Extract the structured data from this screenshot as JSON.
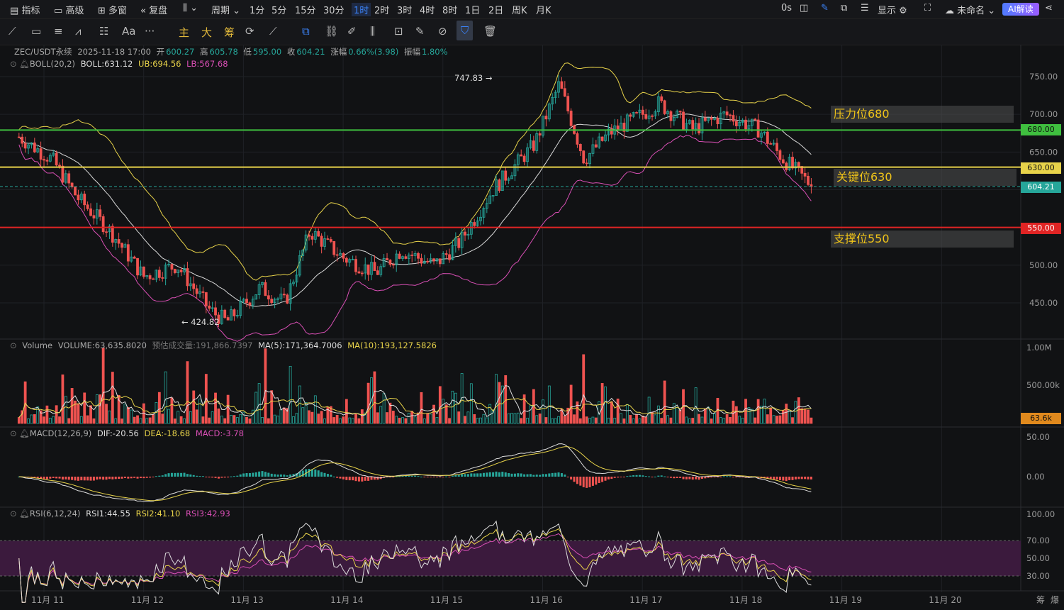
{
  "topbar": {
    "left": [
      {
        "icon": "indicator-icon",
        "label": "指标"
      },
      {
        "icon": "advanced-icon",
        "label": "高级"
      },
      {
        "icon": "multiwindow-icon",
        "label": "多窗"
      },
      {
        "icon": "replay-icon",
        "label": "复盘"
      }
    ],
    "chart_type_icon": "candlestick-icon",
    "period_label": "周期",
    "intervals": [
      "1分",
      "5分",
      "15分",
      "30分",
      "1时",
      "2时",
      "3时",
      "4时",
      "8时",
      "1日",
      "2日",
      "周K",
      "月K"
    ],
    "active_interval": "1时",
    "right": {
      "countdown": "0s",
      "display_label": "显示",
      "account_label": "未命名",
      "ai_label": "AI解读"
    }
  },
  "toolbar": {
    "main_label": "主",
    "big_label": "大",
    "chip_label": "筹",
    "aa_label": "Aa",
    "more": "···"
  },
  "legend": {
    "symbol": "ZEC/USDT永续",
    "datetime": "2025-11-18 17:00",
    "open_k": "开",
    "open": "600.27",
    "high_k": "高",
    "high": "605.78",
    "low_k": "低",
    "low": "595.00",
    "close_k": "收",
    "close": "604.21",
    "chg_k": "涨幅",
    "chg": "0.66%(3.98)",
    "amp_k": "振幅",
    "amp": "1.80%",
    "boll_name": "BOLL(20,2)",
    "boll": "BOLL:631.12",
    "ub": "UB:694.56",
    "lb": "LB:567.68",
    "vol_name": "Volume",
    "vol": "VOLUME:63,635.8020",
    "vol_est": "预估成交量:191,866.7397",
    "vma5": "MA(5):171,364.7006",
    "vma10": "MA(10):193,127.5826",
    "macd_name": "MACD(12,26,9)",
    "dif": "DIF:-20.56",
    "dea": "DEA:-18.68",
    "macd": "MACD:-3.78",
    "rsi_name": "RSI(6,12,24)",
    "rsi1": "RSI1:44.55",
    "rsi2": "RSI2:41.10",
    "rsi3": "RSI3:42.93"
  },
  "annotations": {
    "high_mark": "747.83",
    "low_mark": "424.82",
    "resistance_label": "压力位680",
    "key_label": "关键位630",
    "support_label": "支撑位550"
  },
  "price_tags": {
    "resistance": "680.00",
    "key": "630.00",
    "last": "604.21",
    "support": "550.00",
    "volume_last": "63.6k"
  },
  "colors": {
    "up": "#26a69a",
    "down": "#ef5350",
    "boll_mid": "#d9d9d9",
    "boll_ub": "#e8d34a",
    "boll_lb": "#d94fb5",
    "resistance": "#3fbf3f",
    "key": "#e8d34a",
    "support": "#e02424"
  },
  "chart_data": {
    "type": "candlestick",
    "price_axis": {
      "ticks": [
        750,
        700,
        650,
        600,
        550,
        500,
        450
      ],
      "labels": [
        "750.00",
        "700.00",
        "650.00",
        "600.00",
        "550.00",
        "500.00",
        "450.00"
      ]
    },
    "volume_axis": {
      "labels": [
        "1.00M",
        "500.00k"
      ]
    },
    "macd_axis": {
      "labels": [
        "50.00",
        "0.00"
      ]
    },
    "rsi_axis": {
      "labels": [
        "100.00",
        "70.00",
        "50.00",
        "30.00"
      ]
    },
    "x_labels": [
      "11月 11",
      "11月 12",
      "11月 13",
      "11月 14",
      "11月 15",
      "11月 16",
      "11月 17",
      "11月 18",
      "11月 19",
      "11月 20"
    ],
    "horizontal_levels": [
      680,
      630,
      550
    ],
    "last_price": 604.21,
    "close_path": [
      [
        "11-10 18:00",
        670
      ],
      [
        "11-11 02:00",
        640
      ],
      [
        "11-11 08:00",
        590
      ],
      [
        "11-11 16:00",
        545
      ],
      [
        "11-12 00:00",
        485
      ],
      [
        "11-12 08:00",
        500
      ],
      [
        "11-12 16:00",
        440
      ],
      [
        "11-12 20:00",
        425
      ],
      [
        "11-13 04:00",
        470
      ],
      [
        "11-13 10:00",
        450
      ],
      [
        "11-13 16:00",
        545
      ],
      [
        "11-14 00:00",
        510
      ],
      [
        "11-14 08:00",
        490
      ],
      [
        "11-14 14:00",
        520
      ],
      [
        "11-14 22:00",
        500
      ],
      [
        "11-15 04:00",
        530
      ],
      [
        "11-15 12:00",
        600
      ],
      [
        "11-15 22:00",
        660
      ],
      [
        "11-16 04:00",
        740
      ],
      [
        "11-16 10:00",
        640
      ],
      [
        "11-16 16:00",
        675
      ],
      [
        "11-17 00:00",
        700
      ],
      [
        "11-17 04:00",
        715
      ],
      [
        "11-17 12:00",
        680
      ],
      [
        "11-17 20:00",
        700
      ],
      [
        "11-18 04:00",
        680
      ],
      [
        "11-18 10:00",
        640
      ],
      [
        "11-18 14:00",
        620
      ],
      [
        "11-18 17:00",
        604.21
      ]
    ],
    "volume_last": 63635.802,
    "macd_last": {
      "dif": -20.56,
      "dea": -18.68,
      "macd": -3.78
    },
    "rsi_last": {
      "rsi1": 44.55,
      "rsi2": 41.1,
      "rsi3": 42.93
    }
  }
}
